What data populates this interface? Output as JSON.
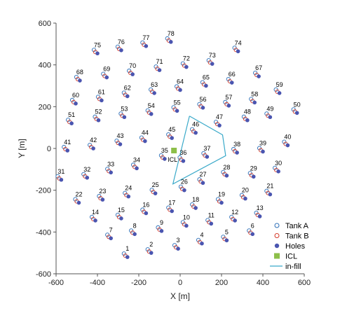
{
  "chart_data": {
    "type": "scatter",
    "xlabel": "X [m]",
    "ylabel": "Y [m]",
    "xlim": [
      -600,
      600
    ],
    "ylim": [
      -600,
      600
    ],
    "xticks": [
      -600,
      -400,
      -200,
      0,
      200,
      400,
      600
    ],
    "yticks": [
      -600,
      -400,
      -200,
      0,
      200,
      400,
      600
    ],
    "grid": false,
    "legend_position": "bottom-right",
    "colors": {
      "tankA": "#2e6fb7",
      "tankB": "#d43a2a",
      "holes": "#4a55b0",
      "icl": "#8dbf4a",
      "infill": "#39a9c9"
    },
    "legend": [
      "Tank A",
      "Tank B",
      "Holes",
      "ICL",
      "in-fill"
    ],
    "icl": {
      "label": "ICL",
      "x": -30,
      "y": -10
    },
    "infill_polygon": [
      [
        45,
        155
      ],
      [
        205,
        65
      ],
      [
        220,
        -35
      ],
      [
        -35,
        -170
      ],
      [
        45,
        155
      ]
    ],
    "holes": [
      {
        "id": "1",
        "x": -255,
        "y": -520
      },
      {
        "id": "2",
        "x": -140,
        "y": -500
      },
      {
        "id": "3",
        "x": -10,
        "y": -480
      },
      {
        "id": "4",
        "x": 105,
        "y": -455
      },
      {
        "id": "5",
        "x": 225,
        "y": -440
      },
      {
        "id": "6",
        "x": 350,
        "y": -410
      },
      {
        "id": "7",
        "x": -335,
        "y": -430
      },
      {
        "id": "8",
        "x": -220,
        "y": -410
      },
      {
        "id": "9",
        "x": -90,
        "y": -395
      },
      {
        "id": "10",
        "x": 30,
        "y": -370
      },
      {
        "id": "11",
        "x": 150,
        "y": -360
      },
      {
        "id": "12",
        "x": 265,
        "y": -345
      },
      {
        "id": "13",
        "x": 385,
        "y": -325
      },
      {
        "id": "14",
        "x": -410,
        "y": -345
      },
      {
        "id": "15",
        "x": -285,
        "y": -335
      },
      {
        "id": "16",
        "x": -165,
        "y": -310
      },
      {
        "id": "17",
        "x": -40,
        "y": -300
      },
      {
        "id": "18",
        "x": 75,
        "y": -285
      },
      {
        "id": "19",
        "x": 200,
        "y": -260
      },
      {
        "id": "20",
        "x": 315,
        "y": -240
      },
      {
        "id": "21",
        "x": 435,
        "y": -220
      },
      {
        "id": "22",
        "x": -490,
        "y": -260
      },
      {
        "id": "23",
        "x": -375,
        "y": -245
      },
      {
        "id": "24",
        "x": -250,
        "y": -230
      },
      {
        "id": "25",
        "x": -120,
        "y": -215
      },
      {
        "id": "26",
        "x": 20,
        "y": -200
      },
      {
        "id": "27",
        "x": 110,
        "y": -165
      },
      {
        "id": "28",
        "x": 225,
        "y": -130
      },
      {
        "id": "29",
        "x": 355,
        "y": -135
      },
      {
        "id": "30",
        "x": 475,
        "y": -110
      },
      {
        "id": "31",
        "x": -575,
        "y": -150
      },
      {
        "id": "32",
        "x": -450,
        "y": -140
      },
      {
        "id": "33",
        "x": -335,
        "y": -115
      },
      {
        "id": "34",
        "x": -210,
        "y": -95
      },
      {
        "id": "35",
        "x": -75,
        "y": -50
      },
      {
        "id": "36",
        "x": 15,
        "y": -60
      },
      {
        "id": "37",
        "x": 130,
        "y": -40
      },
      {
        "id": "38",
        "x": 275,
        "y": -20
      },
      {
        "id": "39",
        "x": 400,
        "y": -15
      },
      {
        "id": "40",
        "x": 520,
        "y": 15
      },
      {
        "id": "41",
        "x": -545,
        "y": -10
      },
      {
        "id": "42",
        "x": -420,
        "y": 0
      },
      {
        "id": "43",
        "x": -290,
        "y": 20
      },
      {
        "id": "44",
        "x": -170,
        "y": 35
      },
      {
        "id": "45",
        "x": -40,
        "y": 50
      },
      {
        "id": "46",
        "x": 75,
        "y": 75
      },
      {
        "id": "47",
        "x": 190,
        "y": 110
      },
      {
        "id": "48",
        "x": 325,
        "y": 135
      },
      {
        "id": "49",
        "x": 435,
        "y": 150
      },
      {
        "id": "50",
        "x": 565,
        "y": 170
      },
      {
        "id": "51",
        "x": -525,
        "y": 120
      },
      {
        "id": "52",
        "x": -395,
        "y": 135
      },
      {
        "id": "53",
        "x": -270,
        "y": 150
      },
      {
        "id": "54",
        "x": -140,
        "y": 165
      },
      {
        "id": "55",
        "x": -15,
        "y": 180
      },
      {
        "id": "56",
        "x": 110,
        "y": 195
      },
      {
        "id": "57",
        "x": 235,
        "y": 205
      },
      {
        "id": "58",
        "x": 360,
        "y": 220
      },
      {
        "id": "59",
        "x": 480,
        "y": 265
      },
      {
        "id": "60",
        "x": -505,
        "y": 215
      },
      {
        "id": "61",
        "x": -380,
        "y": 230
      },
      {
        "id": "62",
        "x": -255,
        "y": 250
      },
      {
        "id": "63",
        "x": -125,
        "y": 265
      },
      {
        "id": "64",
        "x": 0,
        "y": 280
      },
      {
        "id": "65",
        "x": 125,
        "y": 300
      },
      {
        "id": "66",
        "x": 250,
        "y": 315
      },
      {
        "id": "67",
        "x": 380,
        "y": 345
      },
      {
        "id": "68",
        "x": -485,
        "y": 325
      },
      {
        "id": "69",
        "x": -355,
        "y": 340
      },
      {
        "id": "70",
        "x": -230,
        "y": 355
      },
      {
        "id": "71",
        "x": -100,
        "y": 375
      },
      {
        "id": "72",
        "x": 30,
        "y": 390
      },
      {
        "id": "73",
        "x": 155,
        "y": 405
      },
      {
        "id": "74",
        "x": 280,
        "y": 465
      },
      {
        "id": "75",
        "x": -400,
        "y": 455
      },
      {
        "id": "76",
        "x": -285,
        "y": 470
      },
      {
        "id": "77",
        "x": -165,
        "y": 490
      },
      {
        "id": "78",
        "x": -45,
        "y": 510
      }
    ]
  }
}
